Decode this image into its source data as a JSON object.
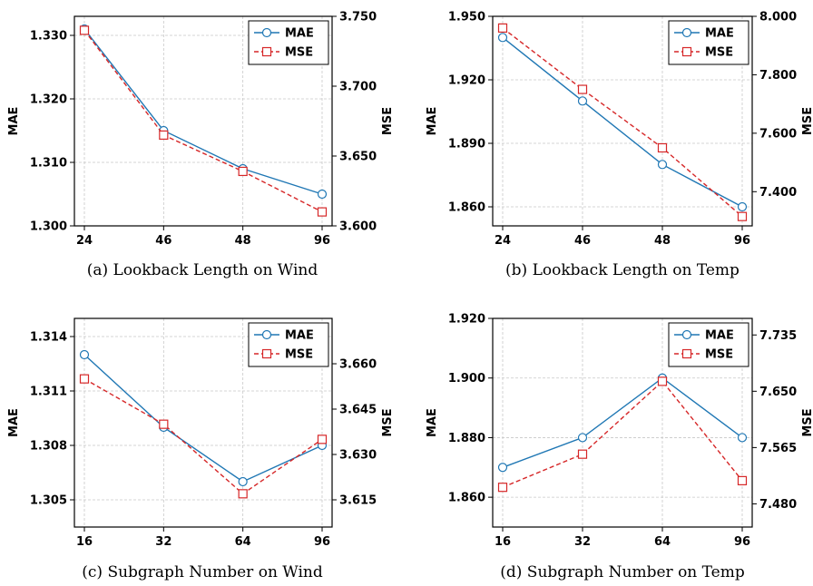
{
  "colors": {
    "mae": "#1f77b4",
    "mse": "#d62728"
  },
  "chart_data": [
    {
      "type": "line",
      "caption": "(a) Lookback Length on Wind",
      "categories": [
        "24",
        "46",
        "48",
        "96"
      ],
      "xlabel": "",
      "ylabel_left": "MAE",
      "ylabel_right": "MSE",
      "ylim_left": [
        1.3,
        1.333
      ],
      "yticks_left": [
        "1.300",
        "1.310",
        "1.320",
        "1.330"
      ],
      "ylim_right": [
        3.6,
        3.75
      ],
      "yticks_right": [
        "3.600",
        "3.650",
        "3.700",
        "3.750"
      ],
      "grid": true,
      "legend": "top-right",
      "series": [
        {
          "name": "MAE",
          "axis": "left",
          "values": [
            1.331,
            1.315,
            1.309,
            1.305
          ]
        },
        {
          "name": "MSE",
          "axis": "right",
          "values": [
            3.74,
            3.665,
            3.639,
            3.61
          ]
        }
      ]
    },
    {
      "type": "line",
      "caption": "(b) Lookback Length on Temp",
      "categories": [
        "24",
        "46",
        "48",
        "96"
      ],
      "xlabel": "",
      "ylabel_left": "MAE",
      "ylabel_right": "MSE",
      "ylim_left": [
        1.851,
        1.95
      ],
      "yticks_left": [
        "1.860",
        "1.890",
        "1.920",
        "1.950"
      ],
      "ylim_right": [
        7.283,
        8.0
      ],
      "yticks_right": [
        "7.400",
        "7.600",
        "7.800",
        "8.000"
      ],
      "grid": true,
      "legend": "top-right",
      "series": [
        {
          "name": "MAE",
          "axis": "left",
          "values": [
            1.94,
            1.91,
            1.88,
            1.86
          ]
        },
        {
          "name": "MSE",
          "axis": "right",
          "values": [
            7.96,
            7.75,
            7.55,
            7.315
          ]
        }
      ]
    },
    {
      "type": "line",
      "caption": "(c) Subgraph Number on Wind",
      "categories": [
        "16",
        "32",
        "64",
        "96"
      ],
      "xlabel": "",
      "ylabel_left": "MAE",
      "ylabel_right": "MSE",
      "ylim_left": [
        1.3035,
        1.315
      ],
      "yticks_left": [
        "1.305",
        "1.308",
        "1.311",
        "1.314"
      ],
      "ylim_right": [
        3.606,
        3.675
      ],
      "yticks_right": [
        "3.615",
        "3.630",
        "3.645",
        "3.660"
      ],
      "grid": true,
      "legend": "top-right",
      "series": [
        {
          "name": "MAE",
          "axis": "left",
          "values": [
            1.313,
            1.309,
            1.306,
            1.308
          ]
        },
        {
          "name": "MSE",
          "axis": "right",
          "values": [
            3.655,
            3.64,
            3.617,
            3.635
          ]
        }
      ]
    },
    {
      "type": "line",
      "caption": "(d) Subgraph Number on Temp",
      "categories": [
        "16",
        "32",
        "64",
        "96"
      ],
      "xlabel": "",
      "ylabel_left": "MAE",
      "ylabel_right": "MSE",
      "ylim_left": [
        1.85,
        1.92
      ],
      "yticks_left": [
        "1.860",
        "1.880",
        "1.900",
        "1.920"
      ],
      "ylim_right": [
        7.445,
        7.76
      ],
      "yticks_right": [
        "7.480",
        "7.565",
        "7.650",
        "7.735"
      ],
      "grid": true,
      "legend": "top-right",
      "series": [
        {
          "name": "MAE",
          "axis": "left",
          "values": [
            1.87,
            1.88,
            1.9,
            1.88
          ]
        },
        {
          "name": "MSE",
          "axis": "right",
          "values": [
            7.505,
            7.555,
            7.665,
            7.515
          ]
        }
      ]
    }
  ]
}
